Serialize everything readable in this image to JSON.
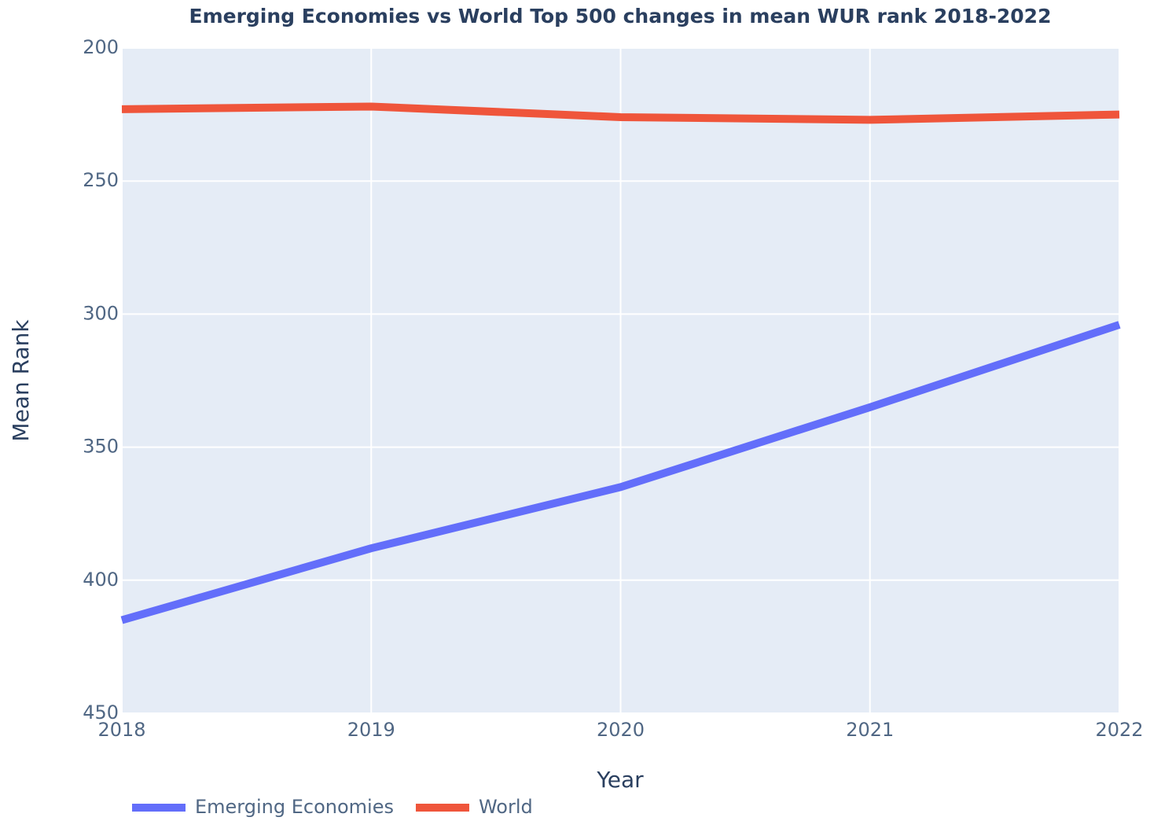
{
  "chart_data": {
    "type": "line",
    "title": "Emerging Economies vs World Top 500 changes in mean WUR rank 2018-2022",
    "x_label": "Year",
    "y_label": "Mean Rank",
    "x": [
      2018,
      2019,
      2020,
      2021,
      2022
    ],
    "series": [
      {
        "name": "Emerging Economies",
        "color": "#636efa",
        "values": [
          415,
          388,
          365,
          335,
          304
        ]
      },
      {
        "name": "World",
        "color": "#ef553b",
        "values": [
          223,
          222,
          226,
          227,
          225
        ]
      }
    ],
    "xlim": [
      2018,
      2022
    ],
    "xticks": [
      2018,
      2019,
      2020,
      2021,
      2022
    ],
    "ylim": [
      200,
      450
    ],
    "yticks": [
      200,
      250,
      300,
      350,
      400,
      450
    ],
    "y_reversed": true,
    "grid": true,
    "legend": "bottom-left"
  }
}
